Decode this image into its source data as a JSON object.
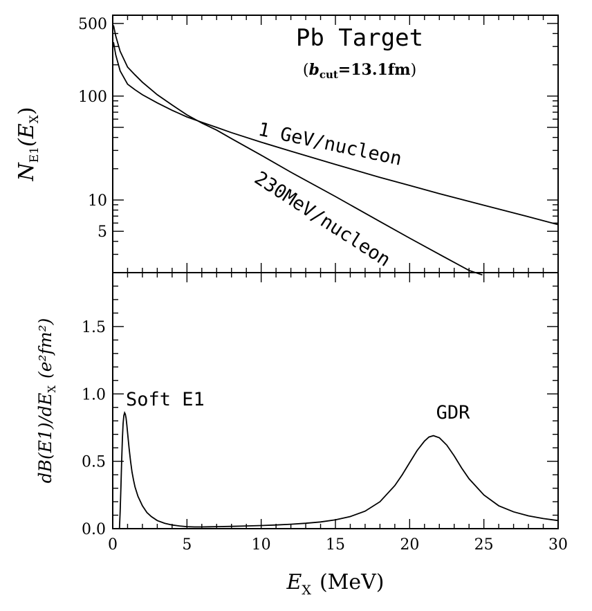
{
  "chart_data": [
    {
      "type": "line",
      "panel": "top",
      "title": "Pb Target",
      "subtitle": {
        "symbol": "b",
        "subscript": "cut",
        "text": "=13.1fm"
      },
      "ylabel": {
        "symbol": "N",
        "subscript": "E1",
        "rest": "(E",
        "rest_sub": "X",
        "close": ")"
      },
      "yscale": "log",
      "ylim": [
        2,
        600
      ],
      "xlim": [
        0,
        30
      ],
      "yticks": [
        {
          "value": 500,
          "label": "500"
        },
        {
          "value": 100,
          "label": "100"
        },
        {
          "value": 10,
          "label": "10"
        },
        {
          "value": 5,
          "label": "5"
        }
      ],
      "series": [
        {
          "name": "1 GeV/nucleon",
          "x": [
            0.05,
            0.2,
            0.5,
            1,
            1.5,
            2,
            3,
            4,
            5,
            6,
            7,
            8,
            10,
            12,
            15,
            18,
            20,
            22,
            25,
            28,
            30
          ],
          "y": [
            330,
            250,
            175,
            130,
            115,
            103,
            86,
            73,
            63,
            56,
            50,
            44.5,
            36,
            29.5,
            22,
            16.5,
            13.8,
            11.5,
            8.9,
            6.9,
            5.8
          ]
        },
        {
          "name": "230MeV/nucleon",
          "x": [
            0.05,
            0.2,
            0.5,
            1,
            1.5,
            2,
            3,
            4,
            5,
            6,
            7,
            8,
            10,
            12,
            15,
            18,
            20,
            22,
            24,
            24.9
          ],
          "y": [
            480,
            380,
            270,
            190,
            160,
            136,
            103,
            82,
            66,
            55,
            47,
            39,
            27,
            18.5,
            10.8,
            6.2,
            4.3,
            3.0,
            2.1,
            1.9
          ]
        }
      ]
    },
    {
      "type": "line",
      "panel": "bottom",
      "ylabel": {
        "text": "dB(E1)/dE",
        "sub": "X",
        "units": "(e²fm²)"
      },
      "xlabel": {
        "symbol": "E",
        "subscript": "X",
        "units": "(MeV)"
      },
      "xlim": [
        0,
        30
      ],
      "ylim": [
        0,
        1.9
      ],
      "xticks": [
        {
          "value": 0,
          "label": "0"
        },
        {
          "value": 5,
          "label": "5"
        },
        {
          "value": 10,
          "label": "10"
        },
        {
          "value": 15,
          "label": "15"
        },
        {
          "value": 20,
          "label": "20"
        },
        {
          "value": 25,
          "label": "25"
        },
        {
          "value": 30,
          "label": "30"
        }
      ],
      "yticks": [
        {
          "value": 0.0,
          "label": "0.0"
        },
        {
          "value": 0.5,
          "label": "0.5"
        },
        {
          "value": 1.0,
          "label": "1.0"
        },
        {
          "value": 1.5,
          "label": "1.5"
        }
      ],
      "annotations": [
        {
          "text": "Soft E1",
          "x": 0.9,
          "y": 0.86
        },
        {
          "text": "GDR",
          "x": 21.6,
          "y": 0.69
        }
      ],
      "series": [
        {
          "name": "",
          "x": [
            0.45,
            0.5,
            0.55,
            0.6,
            0.65,
            0.7,
            0.75,
            0.8,
            0.85,
            0.9,
            0.95,
            1.0,
            1.1,
            1.2,
            1.3,
            1.4,
            1.5,
            1.7,
            2.0,
            2.3,
            2.6,
            3.0,
            3.5,
            4.0,
            4.5,
            5.0,
            5.5,
            6.0,
            6.5,
            7.0,
            8,
            9,
            10,
            11,
            12,
            13,
            14,
            15,
            16,
            17,
            18,
            19,
            19.5,
            20,
            20.5,
            21,
            21.3,
            21.6,
            22,
            22.5,
            23,
            23.5,
            24,
            25,
            26,
            27,
            28,
            29,
            30
          ],
          "y": [
            0.0,
            0.12,
            0.3,
            0.5,
            0.67,
            0.78,
            0.84,
            0.86,
            0.85,
            0.82,
            0.77,
            0.71,
            0.6,
            0.5,
            0.42,
            0.36,
            0.31,
            0.24,
            0.17,
            0.12,
            0.09,
            0.06,
            0.04,
            0.027,
            0.02,
            0.015,
            0.013,
            0.013,
            0.014,
            0.015,
            0.017,
            0.02,
            0.023,
            0.027,
            0.033,
            0.04,
            0.05,
            0.065,
            0.09,
            0.13,
            0.2,
            0.32,
            0.4,
            0.49,
            0.58,
            0.65,
            0.68,
            0.69,
            0.675,
            0.62,
            0.54,
            0.45,
            0.37,
            0.25,
            0.17,
            0.125,
            0.095,
            0.075,
            0.06
          ]
        }
      ]
    }
  ]
}
